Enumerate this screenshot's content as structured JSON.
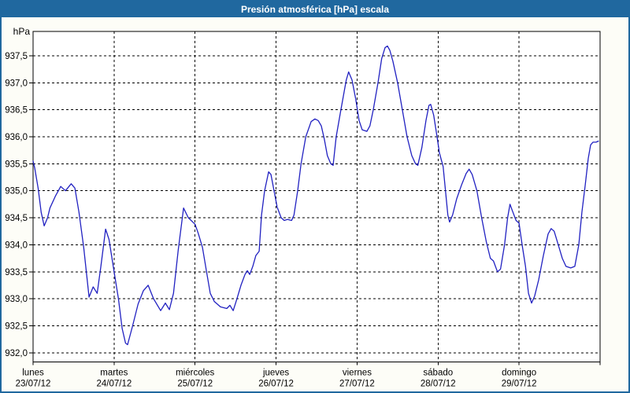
{
  "window": {
    "title": "Presión atmosférica [hPa] escala"
  },
  "colors": {
    "titlebar": "#20689f",
    "window_bg": "#fdfdf7",
    "plot_bg": "#ffffff",
    "grid": "#000000",
    "plot_border": "#000000",
    "line": "#2121c1",
    "title_text": "#ffffff",
    "label_text": "#000000"
  },
  "chart_data": {
    "type": "line",
    "title": "Presión atmosférica [hPa] escala",
    "ylabel": "hPa",
    "xlabel": "",
    "grid": "dashed",
    "legend": "none",
    "ylim": [
      931.83,
      937.95
    ],
    "yticks": [
      937.5,
      937.0,
      936.5,
      936.0,
      935.5,
      935.0,
      934.5,
      934.0,
      933.5,
      933.0,
      932.5,
      932.0
    ],
    "ytick_labels": [
      "937,5",
      "937,0",
      "936,5",
      "936,0",
      "935,5",
      "935,0",
      "934,5",
      "934,0",
      "933,5",
      "933,0",
      "932,5",
      "932,0"
    ],
    "x_unit": "hours_from_monday_00h",
    "x_total_hours": 168,
    "x_days": [
      {
        "name": "lunes",
        "date": "23/07/12"
      },
      {
        "name": "martes",
        "date": "24/07/12"
      },
      {
        "name": "miércoles",
        "date": "25/07/12"
      },
      {
        "name": "jueves",
        "date": "26/07/12"
      },
      {
        "name": "viernes",
        "date": "27/07/12"
      },
      {
        "name": "sábado",
        "date": "28/07/12"
      },
      {
        "name": "domingo",
        "date": "29/07/12"
      }
    ],
    "series": [
      {
        "name": "Presión atmosférica",
        "unit": "hPa",
        "points": [
          [
            0,
            935.55
          ],
          [
            0.5,
            935.42
          ],
          [
            1.5,
            935.05
          ],
          [
            2.4,
            934.6
          ],
          [
            3.3,
            934.35
          ],
          [
            4.3,
            934.5
          ],
          [
            5,
            934.68
          ],
          [
            6.6,
            934.9
          ],
          [
            8.2,
            935.08
          ],
          [
            9.6,
            935.0
          ],
          [
            11.3,
            935.13
          ],
          [
            12.4,
            935.05
          ],
          [
            13.6,
            934.6
          ],
          [
            15,
            933.95
          ],
          [
            16.6,
            933.03
          ],
          [
            17.8,
            933.22
          ],
          [
            19,
            933.1
          ],
          [
            20.1,
            933.6
          ],
          [
            21.5,
            934.29
          ],
          [
            22.5,
            934.1
          ],
          [
            24,
            933.5
          ],
          [
            25.3,
            933.0
          ],
          [
            26.4,
            932.45
          ],
          [
            27.4,
            932.18
          ],
          [
            28,
            932.15
          ],
          [
            29.5,
            932.5
          ],
          [
            31.1,
            932.9
          ],
          [
            32.7,
            933.15
          ],
          [
            34.1,
            933.25
          ],
          [
            35.7,
            933.0
          ],
          [
            37.8,
            932.78
          ],
          [
            39.2,
            932.92
          ],
          [
            40.4,
            932.8
          ],
          [
            41.6,
            933.1
          ],
          [
            43,
            933.9
          ],
          [
            44.6,
            934.68
          ],
          [
            46,
            934.5
          ],
          [
            48,
            934.38
          ],
          [
            49,
            934.2
          ],
          [
            50.2,
            933.95
          ],
          [
            51.4,
            933.5
          ],
          [
            52.5,
            933.1
          ],
          [
            53.7,
            932.95
          ],
          [
            55.5,
            932.85
          ],
          [
            57.4,
            932.82
          ],
          [
            58.3,
            932.88
          ],
          [
            59.3,
            932.78
          ],
          [
            60.4,
            933.0
          ],
          [
            61.6,
            933.25
          ],
          [
            62.8,
            933.45
          ],
          [
            63.5,
            933.52
          ],
          [
            64.2,
            933.45
          ],
          [
            65.1,
            933.6
          ],
          [
            66,
            933.8
          ],
          [
            67,
            933.88
          ],
          [
            67.7,
            934.55
          ],
          [
            68.6,
            935.0
          ],
          [
            69.8,
            935.35
          ],
          [
            70.5,
            935.3
          ],
          [
            71.4,
            935.0
          ],
          [
            72.3,
            934.7
          ],
          [
            73.5,
            934.5
          ],
          [
            74.4,
            934.45
          ],
          [
            75.4,
            934.47
          ],
          [
            76.6,
            934.45
          ],
          [
            77.3,
            934.55
          ],
          [
            78.4,
            935.0
          ],
          [
            79.4,
            935.5
          ],
          [
            80.8,
            936.0
          ],
          [
            82.4,
            936.28
          ],
          [
            83.5,
            936.33
          ],
          [
            84.5,
            936.3
          ],
          [
            85.4,
            936.2
          ],
          [
            86.3,
            935.95
          ],
          [
            87.2,
            935.65
          ],
          [
            88.2,
            935.5
          ],
          [
            88.9,
            935.47
          ],
          [
            89.8,
            936.0
          ],
          [
            91.2,
            936.5
          ],
          [
            92.8,
            937.05
          ],
          [
            93.5,
            937.2
          ],
          [
            94.5,
            937.05
          ],
          [
            95.6,
            936.7
          ],
          [
            96.6,
            936.3
          ],
          [
            97.5,
            936.13
          ],
          [
            98.9,
            936.1
          ],
          [
            99.8,
            936.2
          ],
          [
            100.8,
            936.5
          ],
          [
            102.2,
            937.0
          ],
          [
            103.3,
            937.45
          ],
          [
            104.3,
            937.65
          ],
          [
            105,
            937.68
          ],
          [
            105.7,
            937.6
          ],
          [
            106.6,
            937.4
          ],
          [
            108,
            937.0
          ],
          [
            109.4,
            936.5
          ],
          [
            110.8,
            936.0
          ],
          [
            112.2,
            935.65
          ],
          [
            113.3,
            935.5
          ],
          [
            114,
            935.47
          ],
          [
            115.2,
            935.8
          ],
          [
            116.4,
            936.3
          ],
          [
            117.3,
            936.58
          ],
          [
            117.8,
            936.6
          ],
          [
            118.7,
            936.4
          ],
          [
            119.7,
            936.0
          ],
          [
            120.4,
            935.7
          ],
          [
            121.5,
            935.45
          ],
          [
            122.2,
            935.0
          ],
          [
            122.9,
            934.55
          ],
          [
            123.4,
            934.42
          ],
          [
            124.3,
            934.55
          ],
          [
            125.5,
            934.85
          ],
          [
            126.9,
            935.1
          ],
          [
            128.3,
            935.32
          ],
          [
            129.2,
            935.4
          ],
          [
            130.1,
            935.3
          ],
          [
            131.5,
            935.0
          ],
          [
            132.9,
            934.5
          ],
          [
            134.3,
            934.05
          ],
          [
            135.5,
            933.75
          ],
          [
            136.4,
            933.7
          ],
          [
            137.6,
            933.5
          ],
          [
            138.5,
            933.55
          ],
          [
            139.7,
            934.0
          ],
          [
            140.6,
            934.5
          ],
          [
            141.3,
            934.75
          ],
          [
            142.2,
            934.6
          ],
          [
            143.1,
            934.45
          ],
          [
            144,
            934.4
          ],
          [
            144.9,
            934.0
          ],
          [
            145.9,
            933.6
          ],
          [
            146.8,
            933.1
          ],
          [
            147.7,
            932.92
          ],
          [
            148.6,
            933.05
          ],
          [
            149.8,
            933.35
          ],
          [
            151.2,
            933.8
          ],
          [
            152.6,
            934.2
          ],
          [
            153.5,
            934.3
          ],
          [
            154.4,
            934.25
          ],
          [
            155.6,
            934.0
          ],
          [
            156.8,
            933.75
          ],
          [
            157.9,
            933.6
          ],
          [
            159.3,
            933.57
          ],
          [
            160.5,
            933.6
          ],
          [
            161.7,
            934.0
          ],
          [
            162.6,
            934.6
          ],
          [
            163.6,
            935.1
          ],
          [
            164.5,
            935.6
          ],
          [
            165.2,
            935.85
          ],
          [
            165.9,
            935.9
          ],
          [
            166.8,
            935.9
          ],
          [
            167.5,
            935.92
          ]
        ]
      }
    ]
  }
}
